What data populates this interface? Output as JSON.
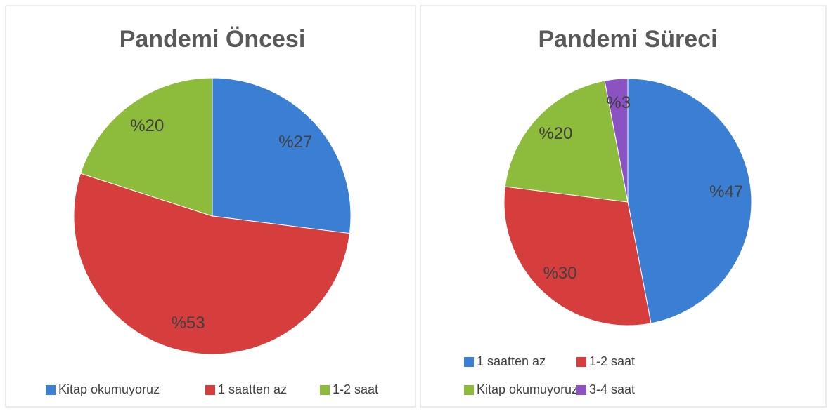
{
  "chart_data": [
    {
      "type": "pie",
      "title": "Pandemi Öncesi",
      "categories": [
        "Kitap okumuyoruz",
        "1 saatten az",
        "1-2 saat"
      ],
      "values": [
        27,
        53,
        20
      ],
      "value_labels": [
        "%27",
        "%53",
        "%20"
      ],
      "colors": [
        "#3b7fd4",
        "#d63d3d",
        "#8dbb3c"
      ]
    },
    {
      "type": "pie",
      "title": "Pandemi Süreci",
      "categories": [
        "1 saatten az",
        "1-2 saat",
        "Kitap okumuyoruz",
        "3-4 saat"
      ],
      "values": [
        47,
        30,
        20,
        3
      ],
      "value_labels": [
        "%47",
        "%30",
        "%20",
        "%3"
      ],
      "colors": [
        "#3b7fd4",
        "#d63d3d",
        "#8dbb3c",
        "#8a52c2"
      ]
    }
  ]
}
